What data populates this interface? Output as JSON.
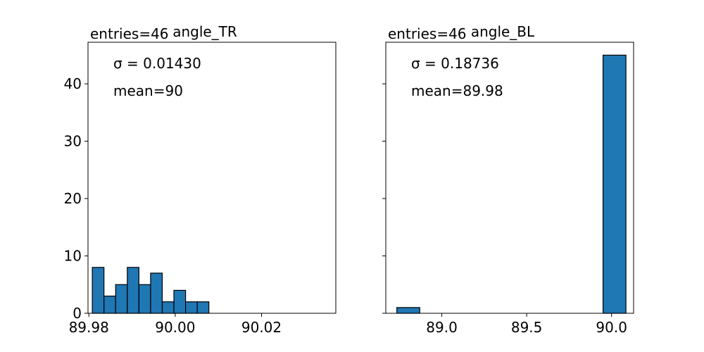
{
  "chart_data": [
    {
      "type": "bar",
      "title": "angle_TR",
      "entries_label": "entries=46",
      "sigma_label": "σ = 0.01430",
      "mean_label": "mean=90",
      "bar_color": "#1f77b4",
      "xlim": [
        89.9798,
        90.0372
      ],
      "ylim": [
        0,
        47.25
      ],
      "x_ticks": [
        89.98,
        90.0,
        90.02
      ],
      "x_tick_labels": [
        "89.98",
        "90.00",
        "90.02"
      ],
      "y_ticks": [
        0,
        10,
        20,
        30,
        40
      ],
      "y_tick_labels": [
        "0",
        "10",
        "20",
        "30",
        "40"
      ],
      "bins": [
        {
          "x0": 89.9808,
          "x1": 89.9835,
          "value": 8
        },
        {
          "x0": 89.9835,
          "x1": 89.9862,
          "value": 3
        },
        {
          "x0": 89.9862,
          "x1": 89.9889,
          "value": 5
        },
        {
          "x0": 89.9889,
          "x1": 89.9916,
          "value": 8
        },
        {
          "x0": 89.9916,
          "x1": 89.9943,
          "value": 5
        },
        {
          "x0": 89.9943,
          "x1": 89.997,
          "value": 7
        },
        {
          "x0": 89.997,
          "x1": 89.9997,
          "value": 2
        },
        {
          "x0": 89.9997,
          "x1": 90.0024,
          "value": 4
        },
        {
          "x0": 90.0024,
          "x1": 90.0051,
          "value": 2
        },
        {
          "x0": 90.0051,
          "x1": 90.0078,
          "value": 2
        }
      ],
      "show_y_labels": true
    },
    {
      "type": "bar",
      "title": "angle_BL",
      "entries_label": "entries=46",
      "sigma_label": "σ = 0.18736",
      "mean_label": "mean=89.98",
      "bar_color": "#1f77b4",
      "xlim": [
        88.67,
        90.13
      ],
      "ylim": [
        0,
        47.25
      ],
      "x_ticks": [
        89.0,
        89.5,
        90.0
      ],
      "x_tick_labels": [
        "89.0",
        "89.5",
        "90.0"
      ],
      "y_ticks": [
        0,
        10,
        20,
        30,
        40
      ],
      "y_tick_labels": [
        "",
        "",
        "",
        "",
        ""
      ],
      "bins": [
        {
          "x0": 88.735,
          "x1": 88.87,
          "value": 1
        },
        {
          "x0": 88.87,
          "x1": 89.005,
          "value": 0
        },
        {
          "x0": 89.005,
          "x1": 89.14,
          "value": 0
        },
        {
          "x0": 89.14,
          "x1": 89.275,
          "value": 0
        },
        {
          "x0": 89.275,
          "x1": 89.41,
          "value": 0
        },
        {
          "x0": 89.41,
          "x1": 89.545,
          "value": 0
        },
        {
          "x0": 89.545,
          "x1": 89.68,
          "value": 0
        },
        {
          "x0": 89.68,
          "x1": 89.815,
          "value": 0
        },
        {
          "x0": 89.815,
          "x1": 89.95,
          "value": 0
        },
        {
          "x0": 89.95,
          "x1": 90.085,
          "value": 45
        }
      ],
      "show_y_labels": false
    }
  ]
}
